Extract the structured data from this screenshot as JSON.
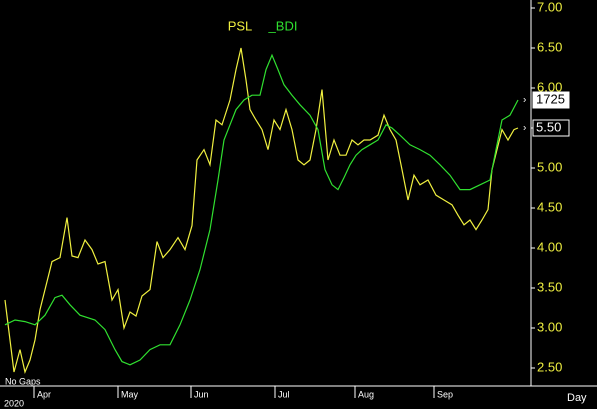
{
  "chart_data": {
    "type": "line",
    "legend": [
      "PSL",
      "_BDI"
    ],
    "note": "No Gaps",
    "year_label": "2020",
    "x_unit_label": "Day",
    "xlim": [
      0,
      132
    ],
    "xticks": [
      {
        "value": 9.25,
        "label": "Apr"
      },
      {
        "value": 30.25,
        "label": "May"
      },
      {
        "value": 48.5,
        "label": "Jun"
      },
      {
        "value": 69.5,
        "label": "Jul"
      },
      {
        "value": 89.5,
        "label": "Aug"
      },
      {
        "value": 109.25,
        "label": "Sep"
      }
    ],
    "ylim": [
      2.4,
      7.1
    ],
    "yticks": [
      {
        "value": 2.5,
        "label": "2.50"
      },
      {
        "value": 3,
        "label": "3.00"
      },
      {
        "value": 3.5,
        "label": "3.50"
      },
      {
        "value": 4,
        "label": "4.00"
      },
      {
        "value": 4.5,
        "label": "4.50"
      },
      {
        "value": 5,
        "label": "5.00"
      },
      {
        "value": 5.5,
        "label": "5.50"
      },
      {
        "value": 6,
        "label": "6.00"
      },
      {
        "value": 6.5,
        "label": "6.50"
      },
      {
        "value": 7,
        "label": "7.00"
      }
    ],
    "end_labels": [
      {
        "text": "1725",
        "series": 1
      },
      {
        "text": "5.50",
        "series": 0
      }
    ],
    "series": [
      {
        "name": "PSL",
        "color": "#f0f040",
        "x": [
          1.25,
          2.5,
          3.5,
          5,
          6.25,
          7.5,
          8.75,
          10,
          11.25,
          13,
          15,
          16.75,
          18,
          19.5,
          21.25,
          23,
          24.5,
          26.25,
          28,
          29.5,
          31,
          32.5,
          34,
          35.5,
          37.5,
          39.25,
          40.75,
          42.5,
          44.5,
          46.25,
          48,
          49.25,
          51,
          52.5,
          54,
          55.5,
          57.5,
          59,
          60.25,
          61.5,
          62.5,
          64,
          65.5,
          67,
          68.5,
          70,
          71.5,
          73,
          74.5,
          76,
          77.5,
          79,
          80.5,
          82,
          83.5,
          85,
          86.5,
          88,
          89.5,
          91,
          92.5,
          94.5,
          96,
          97.5,
          99,
          100.5,
          102,
          103.5,
          105,
          107,
          109,
          111,
          113,
          114.5,
          116,
          117.5,
          119,
          120.5,
          122,
          123,
          124.25,
          125.5,
          127,
          128.5,
          129.5
        ],
        "values": [
          3.35,
          2.85,
          2.45,
          2.73,
          2.45,
          2.6,
          2.85,
          3.23,
          3.48,
          3.83,
          3.88,
          4.38,
          3.9,
          3.88,
          4.1,
          3.98,
          3.8,
          3.83,
          3.35,
          3.48,
          3.0,
          3.2,
          3.15,
          3.4,
          3.48,
          4.08,
          3.88,
          3.98,
          4.13,
          3.98,
          4.28,
          5.1,
          5.23,
          5.04,
          5.6,
          5.54,
          5.85,
          6.23,
          6.5,
          6.1,
          5.73,
          5.6,
          5.48,
          5.23,
          5.6,
          5.48,
          5.73,
          5.48,
          5.1,
          5.04,
          5.1,
          5.48,
          5.98,
          5.1,
          5.35,
          5.16,
          5.16,
          5.35,
          5.29,
          5.35,
          5.35,
          5.41,
          5.66,
          5.48,
          5.35,
          4.98,
          4.6,
          4.91,
          4.79,
          4.85,
          4.66,
          4.6,
          4.54,
          4.41,
          4.29,
          4.35,
          4.23,
          4.35,
          4.48,
          4.98,
          5.23,
          5.48,
          5.35,
          5.48,
          5.5
        ]
      },
      {
        "name": "_BDI",
        "color": "#30e030",
        "x": [
          1.25,
          3.75,
          6.25,
          8.75,
          11.25,
          13.75,
          15.5,
          17.5,
          20,
          23.75,
          26.25,
          28.75,
          30.5,
          32.5,
          35,
          37.5,
          40,
          42.5,
          45,
          47.5,
          50,
          52.5,
          54.5,
          56,
          57.5,
          59,
          61,
          63,
          65,
          66.5,
          68,
          69.5,
          71,
          73,
          75,
          77.5,
          79.5,
          81.25,
          83,
          84.5,
          86,
          87.5,
          89,
          90.5,
          92.5,
          94.5,
          96.5,
          98,
          100,
          102.5,
          105,
          107.5,
          110,
          112.5,
          115,
          117.5,
          120,
          122.5,
          124,
          125.5,
          127.5,
          129.5
        ],
        "values": [
          3.04,
          3.1,
          3.08,
          3.04,
          3.16,
          3.38,
          3.41,
          3.29,
          3.16,
          3.1,
          2.98,
          2.73,
          2.58,
          2.54,
          2.6,
          2.73,
          2.79,
          2.79,
          3.04,
          3.35,
          3.73,
          4.23,
          4.85,
          5.35,
          5.54,
          5.73,
          5.85,
          5.91,
          5.91,
          6.23,
          6.41,
          6.23,
          6.04,
          5.91,
          5.79,
          5.66,
          5.48,
          4.98,
          4.79,
          4.73,
          4.88,
          5.04,
          5.16,
          5.23,
          5.29,
          5.35,
          5.54,
          5.5,
          5.41,
          5.29,
          5.23,
          5.16,
          5.04,
          4.91,
          4.73,
          4.73,
          4.79,
          4.85,
          5.23,
          5.6,
          5.66,
          5.85
        ]
      }
    ]
  }
}
